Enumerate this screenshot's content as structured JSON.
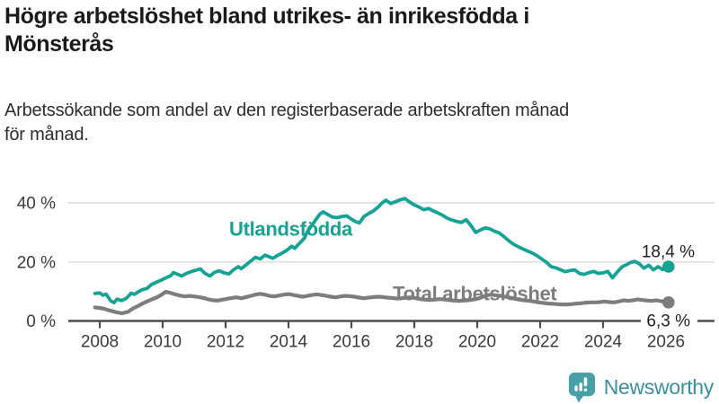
{
  "header": {
    "title_line1": "Högre arbetslöshet bland utrikes- än inrikesfödda i",
    "title_line2": "Mönsterås",
    "subtitle_line1": "Arbetssökande som andel av den registerbaserade arbetskraften månad",
    "subtitle_line2": "för månad."
  },
  "footer": {
    "brand": "Newsworthy",
    "logo_icon": "bar-chart-speech-bubble-icon",
    "brand_text_color": "#3b8f9c",
    "logo_bubble_color": "#47a0a8"
  },
  "chart_data": {
    "type": "line",
    "unit": "%",
    "title": "Högre arbetslöshet bland utrikes- än inrikesfödda i Mönsterås",
    "subtitle": "Arbetssökande som andel av den registerbaserade arbetskraften månad för månad.",
    "xlabel": "",
    "ylabel": "",
    "grid": "horizontal",
    "xlim": [
      2007.7,
      2026.5
    ],
    "ylim": [
      0,
      45
    ],
    "x_ticks": [
      2008,
      2010,
      2012,
      2014,
      2016,
      2018,
      2020,
      2022,
      2024,
      2026
    ],
    "y_ticks": [
      0,
      20,
      40
    ],
    "y_tick_labels": [
      "0 %",
      "20 %",
      "40 %"
    ],
    "axis_color": "#4d4d4d",
    "grid_color": "#d9d9d9",
    "series": [
      {
        "name": "Utlandsfödda",
        "color": "#16a294",
        "end_value": 18.4,
        "end_label": "18,4 %",
        "points": [
          [
            2007.85,
            9.3
          ],
          [
            2008.0,
            9.5
          ],
          [
            2008.1,
            8.7
          ],
          [
            2008.2,
            9.1
          ],
          [
            2008.35,
            6.8
          ],
          [
            2008.45,
            6.2
          ],
          [
            2008.55,
            7.4
          ],
          [
            2008.7,
            6.9
          ],
          [
            2008.85,
            7.7
          ],
          [
            2009.0,
            9.4
          ],
          [
            2009.1,
            9.0
          ],
          [
            2009.2,
            9.7
          ],
          [
            2009.35,
            10.6
          ],
          [
            2009.5,
            11.0
          ],
          [
            2009.65,
            12.4
          ],
          [
            2009.8,
            13.1
          ],
          [
            2009.95,
            13.8
          ],
          [
            2010.1,
            14.6
          ],
          [
            2010.25,
            15.3
          ],
          [
            2010.35,
            16.4
          ],
          [
            2010.5,
            15.7
          ],
          [
            2010.6,
            15.2
          ],
          [
            2010.75,
            16.1
          ],
          [
            2010.9,
            16.7
          ],
          [
            2011.05,
            17.2
          ],
          [
            2011.2,
            17.6
          ],
          [
            2011.35,
            16.1
          ],
          [
            2011.5,
            15.2
          ],
          [
            2011.65,
            16.5
          ],
          [
            2011.8,
            17.0
          ],
          [
            2011.95,
            16.3
          ],
          [
            2012.1,
            15.9
          ],
          [
            2012.25,
            17.3
          ],
          [
            2012.4,
            18.4
          ],
          [
            2012.5,
            17.7
          ],
          [
            2012.65,
            19.0
          ],
          [
            2012.8,
            20.3
          ],
          [
            2012.95,
            21.6
          ],
          [
            2013.1,
            21.0
          ],
          [
            2013.25,
            22.3
          ],
          [
            2013.4,
            21.7
          ],
          [
            2013.5,
            21.2
          ],
          [
            2013.65,
            22.2
          ],
          [
            2013.8,
            23.0
          ],
          [
            2013.95,
            24.0
          ],
          [
            2014.1,
            25.3
          ],
          [
            2014.2,
            24.6
          ],
          [
            2014.35,
            26.3
          ],
          [
            2014.5,
            28.0
          ],
          [
            2014.6,
            30.2
          ],
          [
            2014.75,
            32.6
          ],
          [
            2014.9,
            34.8
          ],
          [
            2015.0,
            36.2
          ],
          [
            2015.1,
            37.0
          ],
          [
            2015.25,
            36.0
          ],
          [
            2015.4,
            35.2
          ],
          [
            2015.55,
            35.0
          ],
          [
            2015.7,
            35.4
          ],
          [
            2015.85,
            35.6
          ],
          [
            2016.0,
            34.5
          ],
          [
            2016.1,
            33.8
          ],
          [
            2016.25,
            33.2
          ],
          [
            2016.4,
            35.4
          ],
          [
            2016.55,
            36.4
          ],
          [
            2016.7,
            37.3
          ],
          [
            2016.85,
            38.6
          ],
          [
            2017.0,
            40.2
          ],
          [
            2017.1,
            40.9
          ],
          [
            2017.25,
            39.8
          ],
          [
            2017.4,
            40.4
          ],
          [
            2017.55,
            41.0
          ],
          [
            2017.7,
            41.5
          ],
          [
            2017.85,
            40.3
          ],
          [
            2018.0,
            39.3
          ],
          [
            2018.15,
            38.6
          ],
          [
            2018.3,
            37.7
          ],
          [
            2018.45,
            38.1
          ],
          [
            2018.6,
            37.3
          ],
          [
            2018.75,
            36.6
          ],
          [
            2018.9,
            35.8
          ],
          [
            2019.05,
            34.8
          ],
          [
            2019.2,
            34.2
          ],
          [
            2019.35,
            33.7
          ],
          [
            2019.5,
            33.4
          ],
          [
            2019.65,
            34.3
          ],
          [
            2019.8,
            32.3
          ],
          [
            2019.95,
            30.0
          ],
          [
            2020.1,
            30.8
          ],
          [
            2020.25,
            31.5
          ],
          [
            2020.4,
            31.2
          ],
          [
            2020.55,
            30.4
          ],
          [
            2020.7,
            29.8
          ],
          [
            2020.85,
            28.6
          ],
          [
            2021.0,
            27.2
          ],
          [
            2021.15,
            26.0
          ],
          [
            2021.3,
            25.2
          ],
          [
            2021.45,
            24.4
          ],
          [
            2021.6,
            23.7
          ],
          [
            2021.75,
            23.0
          ],
          [
            2021.9,
            22.1
          ],
          [
            2022.05,
            21.0
          ],
          [
            2022.2,
            19.9
          ],
          [
            2022.35,
            18.4
          ],
          [
            2022.5,
            18.0
          ],
          [
            2022.65,
            17.3
          ],
          [
            2022.8,
            16.7
          ],
          [
            2022.95,
            17.1
          ],
          [
            2023.1,
            17.3
          ],
          [
            2023.25,
            16.1
          ],
          [
            2023.4,
            15.8
          ],
          [
            2023.55,
            16.4
          ],
          [
            2023.7,
            16.8
          ],
          [
            2023.85,
            16.1
          ],
          [
            2024.0,
            16.3
          ],
          [
            2024.15,
            16.8
          ],
          [
            2024.3,
            14.6
          ],
          [
            2024.45,
            16.6
          ],
          [
            2024.6,
            18.3
          ],
          [
            2024.75,
            19.1
          ],
          [
            2024.9,
            19.9
          ],
          [
            2025.0,
            20.2
          ],
          [
            2025.15,
            19.4
          ],
          [
            2025.3,
            17.9
          ],
          [
            2025.45,
            18.9
          ],
          [
            2025.6,
            17.3
          ],
          [
            2025.75,
            18.4
          ],
          [
            2025.9,
            17.4
          ],
          [
            2026.08,
            18.4
          ]
        ]
      },
      {
        "name": "Total arbetslöshet",
        "color": "#7d7d7d",
        "end_value": 6.3,
        "end_label": "6,3 %",
        "points": [
          [
            2007.85,
            4.6
          ],
          [
            2008.0,
            4.4
          ],
          [
            2008.15,
            4.1
          ],
          [
            2008.3,
            3.6
          ],
          [
            2008.5,
            3.0
          ],
          [
            2008.7,
            2.6
          ],
          [
            2008.9,
            3.1
          ],
          [
            2009.05,
            4.2
          ],
          [
            2009.2,
            5.0
          ],
          [
            2009.35,
            5.8
          ],
          [
            2009.5,
            6.6
          ],
          [
            2009.65,
            7.3
          ],
          [
            2009.8,
            7.9
          ],
          [
            2009.95,
            8.8
          ],
          [
            2010.1,
            9.9
          ],
          [
            2010.25,
            9.5
          ],
          [
            2010.4,
            9.0
          ],
          [
            2010.55,
            8.6
          ],
          [
            2010.7,
            8.3
          ],
          [
            2010.85,
            8.5
          ],
          [
            2011.0,
            8.3
          ],
          [
            2011.15,
            8.1
          ],
          [
            2011.3,
            7.8
          ],
          [
            2011.45,
            7.3
          ],
          [
            2011.6,
            7.0
          ],
          [
            2011.75,
            6.9
          ],
          [
            2011.9,
            7.2
          ],
          [
            2012.05,
            7.5
          ],
          [
            2012.2,
            7.8
          ],
          [
            2012.35,
            8.0
          ],
          [
            2012.5,
            7.7
          ],
          [
            2012.65,
            8.1
          ],
          [
            2012.8,
            8.5
          ],
          [
            2012.95,
            8.9
          ],
          [
            2013.1,
            9.2
          ],
          [
            2013.25,
            8.9
          ],
          [
            2013.4,
            8.5
          ],
          [
            2013.55,
            8.3
          ],
          [
            2013.7,
            8.6
          ],
          [
            2013.85,
            8.9
          ],
          [
            2014.0,
            9.1
          ],
          [
            2014.15,
            8.8
          ],
          [
            2014.3,
            8.5
          ],
          [
            2014.45,
            8.2
          ],
          [
            2014.6,
            8.5
          ],
          [
            2014.75,
            8.8
          ],
          [
            2014.9,
            9.0
          ],
          [
            2015.05,
            8.8
          ],
          [
            2015.2,
            8.5
          ],
          [
            2015.35,
            8.2
          ],
          [
            2015.5,
            8.0
          ],
          [
            2015.65,
            8.3
          ],
          [
            2015.8,
            8.5
          ],
          [
            2015.95,
            8.4
          ],
          [
            2016.1,
            8.2
          ],
          [
            2016.25,
            7.9
          ],
          [
            2016.4,
            7.7
          ],
          [
            2016.55,
            7.9
          ],
          [
            2016.7,
            8.1
          ],
          [
            2016.85,
            8.2
          ],
          [
            2017.0,
            8.1
          ],
          [
            2017.15,
            7.9
          ],
          [
            2017.3,
            7.8
          ],
          [
            2017.45,
            7.6
          ],
          [
            2017.6,
            7.7
          ],
          [
            2017.75,
            7.9
          ],
          [
            2017.9,
            8.0
          ],
          [
            2018.05,
            7.7
          ],
          [
            2018.2,
            7.4
          ],
          [
            2018.35,
            7.2
          ],
          [
            2018.5,
            7.1
          ],
          [
            2018.65,
            7.2
          ],
          [
            2018.8,
            7.4
          ],
          [
            2018.95,
            7.3
          ],
          [
            2019.1,
            7.1
          ],
          [
            2019.25,
            6.9
          ],
          [
            2019.4,
            6.8
          ],
          [
            2019.55,
            6.9
          ],
          [
            2019.7,
            7.0
          ],
          [
            2019.85,
            7.2
          ],
          [
            2020.0,
            7.5
          ],
          [
            2020.15,
            8.1
          ],
          [
            2020.3,
            8.7
          ],
          [
            2020.45,
            8.9
          ],
          [
            2020.6,
            8.7
          ],
          [
            2020.75,
            8.5
          ],
          [
            2020.9,
            8.2
          ],
          [
            2021.05,
            7.9
          ],
          [
            2021.2,
            7.5
          ],
          [
            2021.35,
            7.2
          ],
          [
            2021.5,
            7.0
          ],
          [
            2021.65,
            6.8
          ],
          [
            2021.8,
            6.6
          ],
          [
            2021.95,
            6.3
          ],
          [
            2022.1,
            6.1
          ],
          [
            2022.25,
            5.9
          ],
          [
            2022.4,
            5.8
          ],
          [
            2022.55,
            5.7
          ],
          [
            2022.7,
            5.6
          ],
          [
            2022.85,
            5.6
          ],
          [
            2023.0,
            5.7
          ],
          [
            2023.15,
            5.9
          ],
          [
            2023.3,
            6.0
          ],
          [
            2023.45,
            6.2
          ],
          [
            2023.6,
            6.3
          ],
          [
            2023.75,
            6.3
          ],
          [
            2023.9,
            6.4
          ],
          [
            2024.05,
            6.6
          ],
          [
            2024.2,
            6.4
          ],
          [
            2024.35,
            6.3
          ],
          [
            2024.5,
            6.6
          ],
          [
            2024.65,
            7.0
          ],
          [
            2024.8,
            6.8
          ],
          [
            2024.95,
            7.0
          ],
          [
            2025.1,
            7.3
          ],
          [
            2025.25,
            7.1
          ],
          [
            2025.4,
            6.9
          ],
          [
            2025.55,
            6.8
          ],
          [
            2025.7,
            7.0
          ],
          [
            2025.85,
            6.7
          ],
          [
            2026.08,
            6.3
          ]
        ]
      }
    ]
  }
}
